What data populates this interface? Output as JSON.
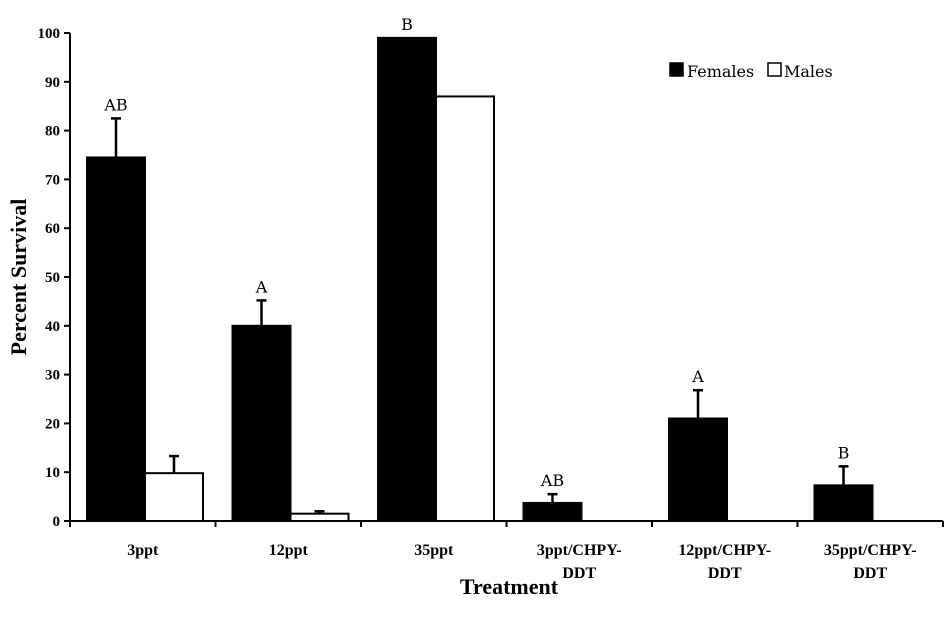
{
  "chart_data": {
    "type": "bar",
    "title": "",
    "xlabel": "Treatment",
    "ylabel": "Percent Survival",
    "ylim": [
      0,
      100
    ],
    "yticks": [
      "0",
      "10",
      "20",
      "30",
      "40",
      "50",
      "60",
      "70",
      "80",
      "90",
      "100"
    ],
    "categories": [
      [
        "3ppt"
      ],
      [
        "12ppt"
      ],
      [
        "35ppt"
      ],
      [
        "3ppt/CHPY-",
        "DDT"
      ],
      [
        "12ppt/CHPY-",
        "DDT"
      ],
      [
        "35ppt/CHPY-",
        "DDT"
      ]
    ],
    "series": [
      {
        "name": "Females",
        "color": "#000000",
        "values": [
          74.5,
          40,
          99,
          3.7,
          21,
          7.3
        ],
        "error": [
          8,
          5.2,
          0,
          1.8,
          5.8,
          3.9
        ],
        "labels": [
          "AB",
          "A",
          "B",
          "AB",
          "A",
          "B"
        ]
      },
      {
        "name": "Males",
        "color": "#ffffff",
        "values": [
          9.8,
          1.5,
          87,
          0,
          0,
          0
        ],
        "error": [
          3.5,
          0.5,
          0,
          0,
          0,
          0
        ],
        "labels": [
          "",
          "",
          "",
          "",
          "",
          ""
        ]
      }
    ],
    "legend_position": "top-right",
    "grid": false
  }
}
